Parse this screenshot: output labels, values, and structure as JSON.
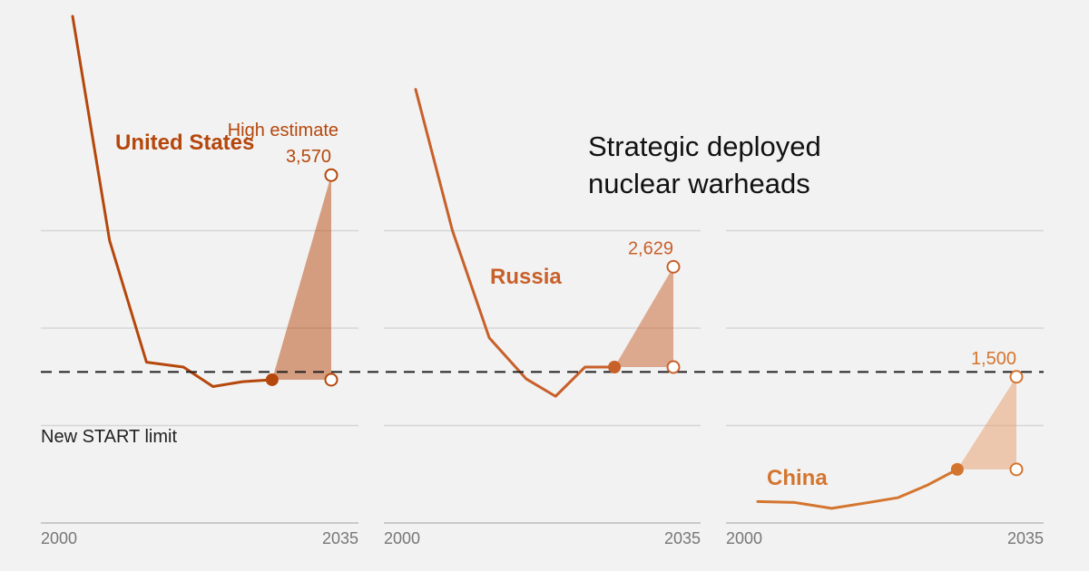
{
  "title_lines": [
    "Strategic deployed",
    "nuclear warheads"
  ],
  "reference_line": {
    "label": "New START limit",
    "value": 1550
  },
  "chart_data": {
    "type": "line",
    "title": "Strategic deployed nuclear warheads",
    "xlim": [
      2000,
      2035
    ],
    "ylim": [
      0,
      5200
    ],
    "grid": true,
    "panels": [
      {
        "name": "United States",
        "color": "#b5470c",
        "fill_color": "#b5470c",
        "x": [
          2000,
          2005,
          2010,
          2015,
          2019,
          2023,
          2027
        ],
        "y": [
          5200,
          2900,
          1650,
          1600,
          1400,
          1450,
          1470
        ],
        "projection": {
          "from_x": 2027,
          "from_y": 1470,
          "to_x": 2035,
          "low": 1470,
          "high": 3570
        },
        "high_label": "High estimate",
        "high_value_label": "3,570",
        "x_ticks": [
          "2000",
          "2035"
        ]
      },
      {
        "name": "Russia",
        "color": "#c8602a",
        "fill_color": "#c8602a",
        "x": [
          2000,
          2005,
          2010,
          2015,
          2019,
          2023,
          2027
        ],
        "y": [
          4450,
          3000,
          1900,
          1480,
          1300,
          1600,
          1600
        ],
        "projection": {
          "from_x": 2027,
          "from_y": 1600,
          "to_x": 2035,
          "low": 1600,
          "high": 2629
        },
        "high_value_label": "2,629",
        "x_ticks": [
          "2000",
          "2035"
        ]
      },
      {
        "name": "China",
        "color": "#d4752f",
        "fill_color": "#e89a6a",
        "x": [
          2000,
          2005,
          2010,
          2015,
          2019,
          2023,
          2027
        ],
        "y": [
          220,
          210,
          150,
          210,
          260,
          390,
          550
        ],
        "projection": {
          "from_x": 2027,
          "from_y": 550,
          "to_x": 2035,
          "low": 550,
          "high": 1500
        },
        "high_value_label": "1,500",
        "x_ticks": [
          "2000",
          "2035"
        ]
      }
    ]
  }
}
